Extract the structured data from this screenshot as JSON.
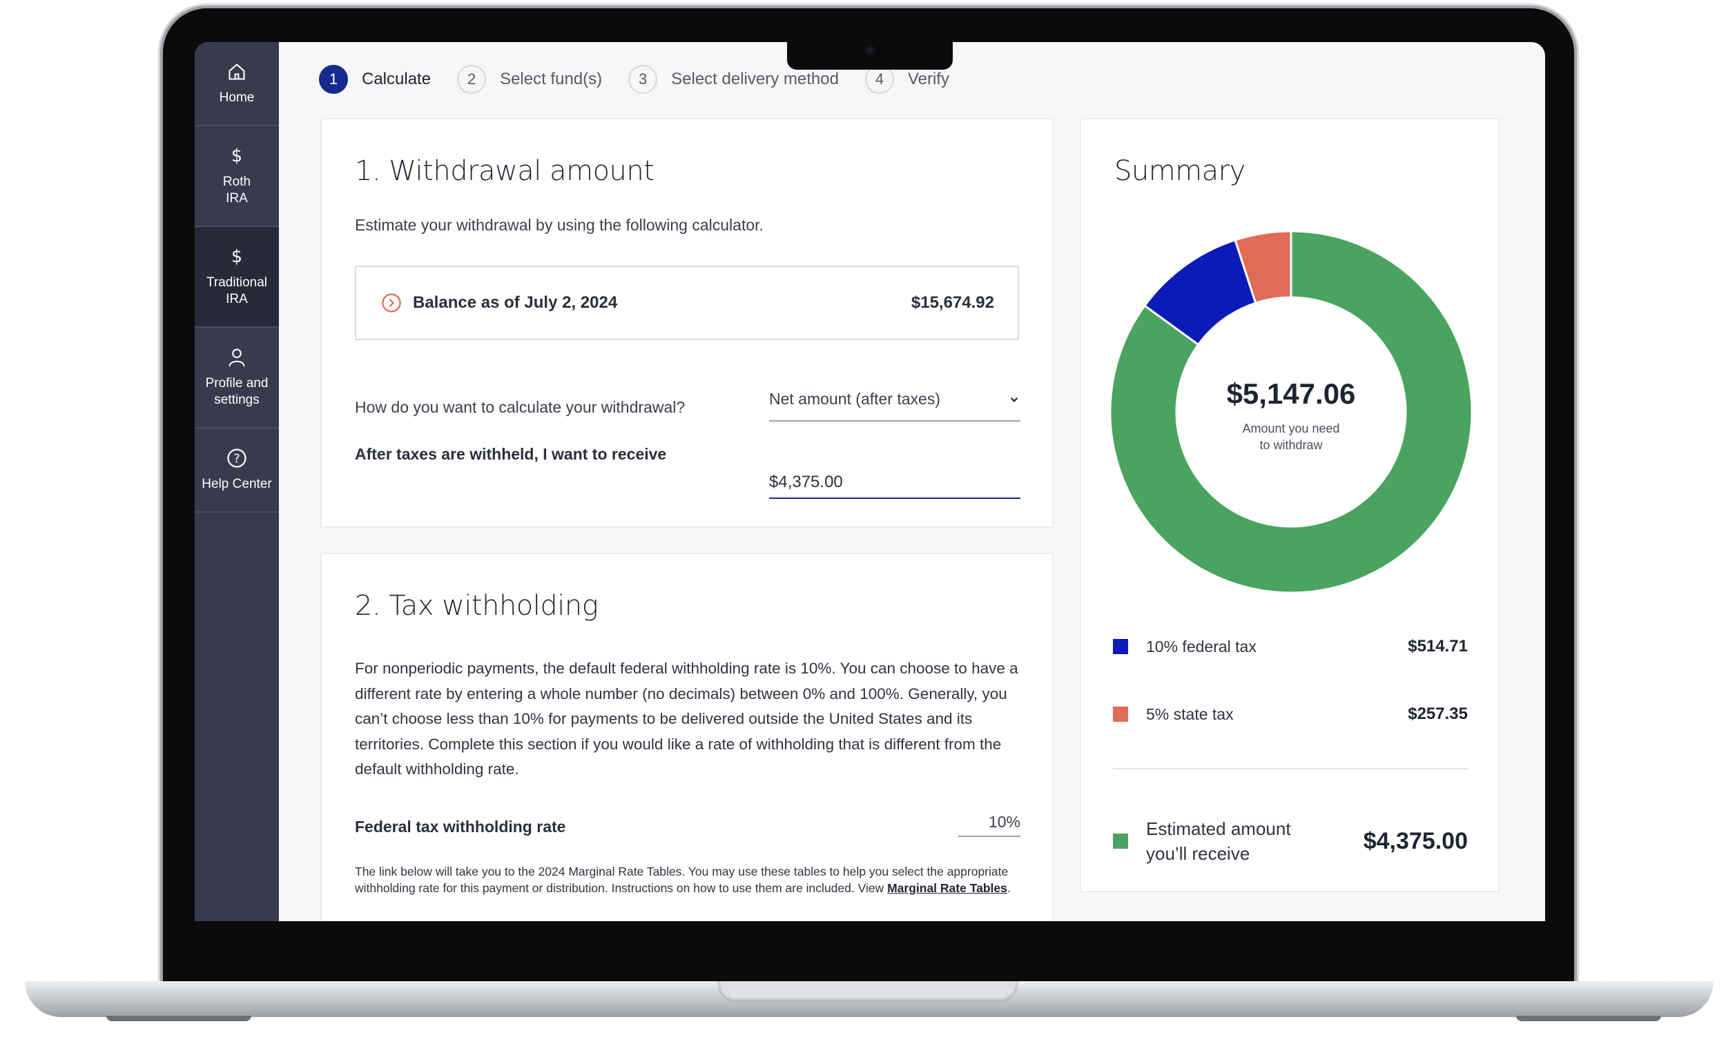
{
  "colors": {
    "sidebar_bg": "#373b4d",
    "accent": "#16298f",
    "federal_tax": "#0a1bb8",
    "state_tax": "#e06b58",
    "receive": "#4aa35f"
  },
  "sidebar": {
    "items": [
      {
        "label": "Home",
        "icon": "home-icon"
      },
      {
        "label": "Roth\nIRA",
        "icon": "dollar-icon"
      },
      {
        "label": "Traditional\nIRA",
        "icon": "dollar-icon",
        "active": true
      },
      {
        "label": "Profile and\nsettings",
        "icon": "person-icon"
      },
      {
        "label": "Help Center",
        "icon": "question-circle-icon"
      }
    ]
  },
  "stepper": {
    "steps": [
      {
        "num": "1",
        "label": "Calculate",
        "active": true
      },
      {
        "num": "2",
        "label": "Select fund(s)"
      },
      {
        "num": "3",
        "label": "Select delivery method"
      },
      {
        "num": "4",
        "label": "Verify"
      }
    ]
  },
  "withdrawal": {
    "title": "1. Withdrawal amount",
    "intro": "Estimate your withdrawal by using the following calculator.",
    "balance_label": "Balance as of July 2, 2024",
    "balance_value": "$15,674.92",
    "calc_method_label": "How do you want to calculate your withdrawal?",
    "calc_method_value": "Net amount (after taxes)",
    "receive_label": "After taxes are withheld, I want to receive",
    "receive_value": "$4,375.00"
  },
  "tax": {
    "title": "2. Tax withholding",
    "paragraph": "For nonperiodic payments, the default federal withholding rate is 10%. You can choose to have a different rate by entering a whole number (no decimals) between 0% and 100%. Generally, you can’t choose less than 10% for payments to be delivered outside the United States and its territories. Complete this section if you would like a rate of withholding that is different from the default withholding rate.",
    "rate_label": "Federal tax withholding rate",
    "rate_value": "10%",
    "note_text": "The link below will take you to the 2024 Marginal Rate Tables. You may use these tables to help you select the appropriate withholding rate for this payment or distribution. Instructions on how to use them are included. View",
    "note_link": "Marginal Rate Tables",
    "note_end": "."
  },
  "summary": {
    "title": "Summary",
    "center_value": "$5,147.06",
    "center_label": "Amount you need\nto withdraw",
    "federal_label": "10% federal tax",
    "federal_value": "$514.71",
    "state_label": "5% state tax",
    "state_value": "$257.35",
    "total_label": "Estimated amount\nyou’ll receive",
    "total_value": "$4,375.00"
  },
  "chart_data": {
    "type": "pie",
    "variant": "donut",
    "categories": [
      "Estimated amount you’ll receive",
      "10% federal tax",
      "5% state tax"
    ],
    "values": [
      4375.0,
      514.71,
      257.35
    ],
    "colors": [
      "#4aa35f",
      "#0a1bb8",
      "#e06b58"
    ],
    "total": 5147.06
  }
}
